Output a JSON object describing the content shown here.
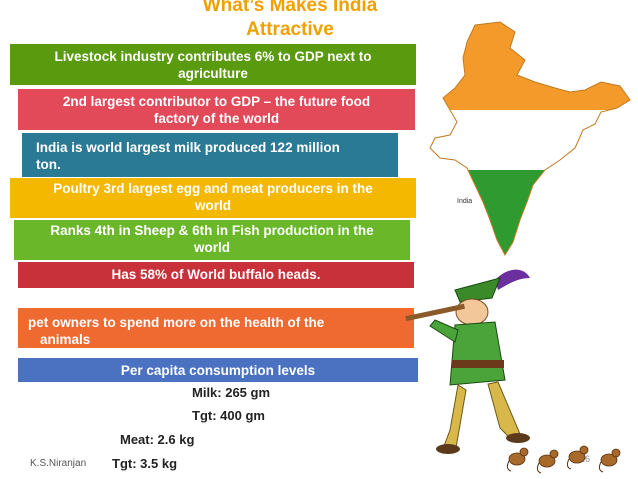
{
  "slide": {
    "title_line1": "What’s Makes India",
    "title_line2": "Attractive",
    "bands": [
      {
        "line1": "Livestock industry contributes 6% to GDP next to",
        "line2": "agriculture"
      },
      {
        "line1": "2nd largest contributor to GDP – the future food",
        "line2": "factory of the world"
      },
      {
        "line1": "India is world largest milk produced 122 million",
        "line2": "ton."
      },
      {
        "line1": "Poultry 3rd largest egg and meat producers in the",
        "line2": "world"
      },
      {
        "line1": "Ranks 4th in Sheep & 6th in Fish production in the",
        "line2": "world"
      },
      {
        "line1": "Has 58% of World buffalo heads."
      },
      {
        "line1": "pet owners to spend more on the health of the",
        "line2": "animals"
      },
      {
        "line1": "Per capita consumption levels"
      }
    ],
    "consumption": {
      "milk": "Milk: 265 gm",
      "milk_tgt": "Tgt:  400 gm",
      "meat": "Meat: 2.6 kg",
      "meat_tgt": "Tgt: 3.5 kg"
    },
    "author": "K.S.Niranjan",
    "page_number": "26",
    "map_label": "India"
  },
  "colors": {
    "title": "#f0a000",
    "band1": "#5a9a0e",
    "band2": "#e24a5a",
    "band3": "#2a7a95",
    "band4": "#f4b800",
    "band5": "#6ab82a",
    "band6": "#c8303a",
    "band7": "#ef6a30",
    "band8": "#4a72c0",
    "map_saffron": "#f39a2a",
    "map_white": "#ffffff",
    "map_green": "#2f9a2f"
  },
  "icons": [
    "india-map-icon",
    "pied-piper-icon",
    "mice-icon"
  ]
}
